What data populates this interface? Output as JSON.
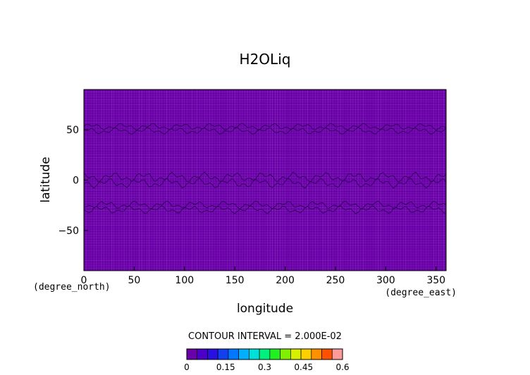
{
  "chart_data": {
    "type": "heatmap",
    "title": "H2OLiq",
    "xlabel": "longitude",
    "ylabel": "latitude",
    "x_units": "(degree_east)",
    "y_units": "(degree_north)",
    "xlim": [
      0,
      360
    ],
    "ylim": [
      -90,
      90
    ],
    "x_ticks": [
      0,
      50,
      100,
      150,
      200,
      250,
      300,
      350
    ],
    "y_ticks": [
      50,
      0,
      -50
    ],
    "y_tick_labels": [
      "50",
      "0",
      "−50"
    ],
    "contour_interval_label": "CONTOUR INTERVAL = 2.000E-02",
    "field_value_background": 0.0,
    "contour_level_drawn": 0.02,
    "contour_bands_lat": [
      {
        "center": 51,
        "amplitude": 3.5
      },
      {
        "center": 0,
        "amplitude": 5
      },
      {
        "center": -27,
        "amplitude": 4
      }
    ],
    "colorbar": {
      "min": 0,
      "max": 0.6,
      "interval": 0.04,
      "tick_labels": [
        "0",
        "0.15",
        "0.3",
        "0.45",
        "0.6"
      ],
      "colors": [
        "#6a00a8",
        "#4b00c8",
        "#2a10e0",
        "#1040f0",
        "#0078ff",
        "#00b0ff",
        "#00e0d8",
        "#00f080",
        "#20f020",
        "#80f000",
        "#d8f000",
        "#ffd000",
        "#ff9000",
        "#ff5000",
        "#ff9a9a"
      ]
    },
    "fill_color": "#6a00a8",
    "contour_color": "#2a0050",
    "grid": true
  }
}
